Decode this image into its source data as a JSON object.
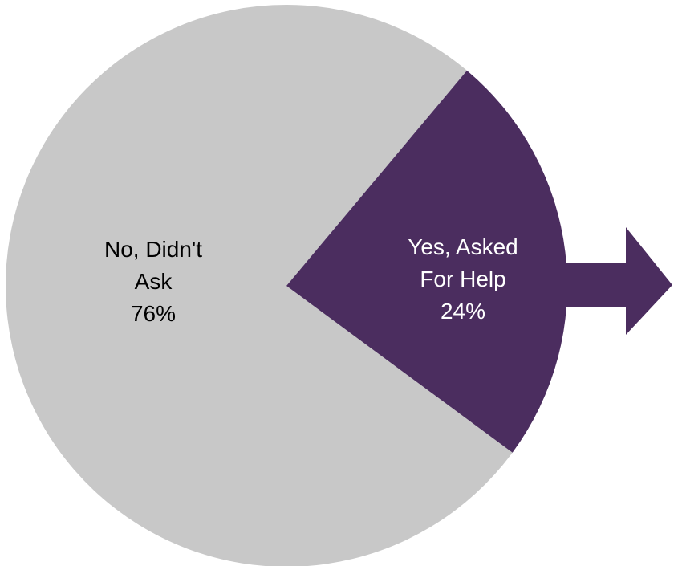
{
  "chart_data": {
    "type": "pie",
    "title": "",
    "slices": [
      {
        "label_lines": [
          "No, Didn't",
          "Ask"
        ],
        "value": 76,
        "value_text": "76%",
        "color": "#c8c8c8",
        "text_color": "#000000"
      },
      {
        "label_lines": [
          "Yes, Asked",
          "For Help"
        ],
        "value": 24,
        "value_text": "24%",
        "color": "#4b2d5f",
        "text_color": "#ffffff"
      }
    ],
    "callout_arrow": {
      "color": "#4b2d5f",
      "points_to": "Yes, Asked For Help"
    }
  }
}
